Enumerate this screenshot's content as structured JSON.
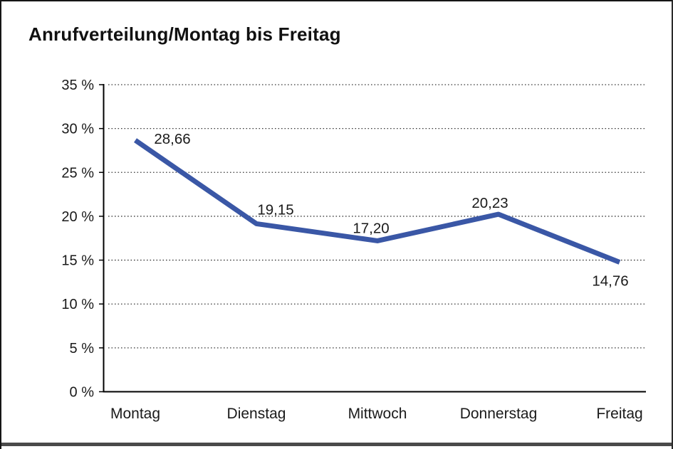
{
  "chart_data": {
    "type": "line",
    "title": "Anrufverteilung/Montag bis Freitag",
    "categories": [
      "Montag",
      "Dienstag",
      "Mittwoch",
      "Donnerstag",
      "Freitag"
    ],
    "values": [
      28.66,
      19.15,
      17.2,
      20.23,
      14.76
    ],
    "value_labels": [
      "28,66",
      "19,15",
      "17,20",
      "20,23",
      "14,76"
    ],
    "xlabel": "",
    "ylabel": "",
    "ylim": [
      0,
      35
    ],
    "ytick_step": 5,
    "ytick_labels": [
      "0 %",
      "5 %",
      "10 %",
      "15 %",
      "20 %",
      "25 %",
      "30 %",
      "35 %"
    ],
    "grid": "horizontal-dotted",
    "legend": "none",
    "series_name": "Anrufverteilung",
    "line_color": "#3A57A6"
  },
  "colors": {
    "line": "#3A57A6",
    "axis": "#000000",
    "grid_dots": "#3c3c3c",
    "text": "#1a1a1a",
    "frame_border": "#161616",
    "frame_bottom": "#4a4a4a",
    "background": "#ffffff"
  }
}
